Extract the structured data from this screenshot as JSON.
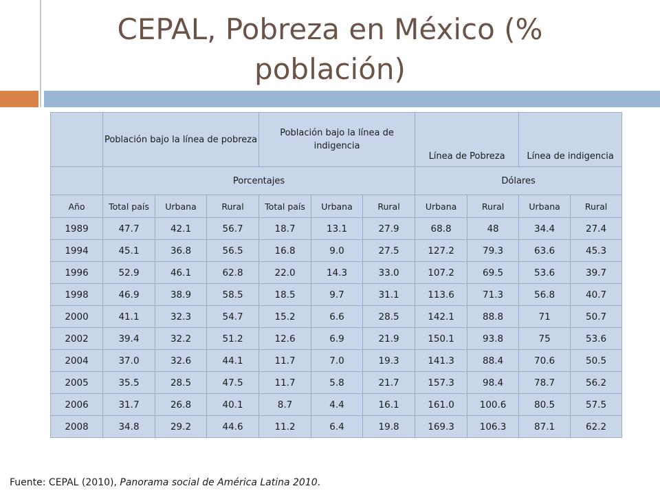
{
  "slide": {
    "title": "CEPAL, Pobreza en México (% población)",
    "source_prefix": "Fuente: CEPAL (2010), ",
    "source_italic": "Panorama social de América Latina 2010",
    "source_suffix": "."
  },
  "table": {
    "group_headers": {
      "blank": "",
      "poverty_line_population": "Población bajo la línea de pobreza",
      "indigence_line_population": "Población bajo la línea de indigencia",
      "poverty_line": "Línea de Pobreza",
      "indigence_line": "Línea de indigencia"
    },
    "unit_headers": {
      "blank": "",
      "percent": "Porcentajes",
      "dollars": "Dólares"
    },
    "columns": [
      "Año",
      "Total país",
      "Urbana",
      "Rural",
      "Total país",
      "Urbana",
      "Rural",
      "Urbana",
      "Rural",
      "Urbana",
      "Rural"
    ],
    "rows": [
      [
        "1989",
        "47.7",
        "42.1",
        "56.7",
        "18.7",
        "13.1",
        "27.9",
        "68.8",
        "48",
        "34.4",
        "27.4"
      ],
      [
        "1994",
        "45.1",
        "36.8",
        "56.5",
        "16.8",
        "9.0",
        "27.5",
        "127.2",
        "79.3",
        "63.6",
        "45.3"
      ],
      [
        "1996",
        "52.9",
        "46.1",
        "62.8",
        "22.0",
        "14.3",
        "33.0",
        "107.2",
        "69.5",
        "53.6",
        "39.7"
      ],
      [
        "1998",
        "46.9",
        "38.9",
        "58.5",
        "18.5",
        "9.7",
        "31.1",
        "113.6",
        "71.3",
        "56.8",
        "40.7"
      ],
      [
        "2000",
        "41.1",
        "32.3",
        "54.7",
        "15.2",
        "6.6",
        "28.5",
        "142.1",
        "88.8",
        "71",
        "50.7"
      ],
      [
        "2002",
        "39.4",
        "32.2",
        "51.2",
        "12.6",
        "6.9",
        "21.9",
        "150.1",
        "93.8",
        "75",
        "53.6"
      ],
      [
        "2004",
        "37.0",
        "32.6",
        "44.1",
        "11.7",
        "7.0",
        "19.3",
        "141.3",
        "88.4",
        "70.6",
        "50.5"
      ],
      [
        "2005",
        "35.5",
        "28.5",
        "47.5",
        "11.7",
        "5.8",
        "21.7",
        "157.3",
        "98.4",
        "78.7",
        "56.2"
      ],
      [
        "2006",
        "31.7",
        "26.8",
        "40.1",
        "8.7",
        "4.4",
        "16.1",
        "161.0",
        "100.6",
        "80.5",
        "57.5"
      ],
      [
        "2008",
        "34.8",
        "29.2",
        "44.6",
        "11.2",
        "6.4",
        "19.8",
        "169.3",
        "106.3",
        "87.1",
        "62.2"
      ]
    ]
  }
}
